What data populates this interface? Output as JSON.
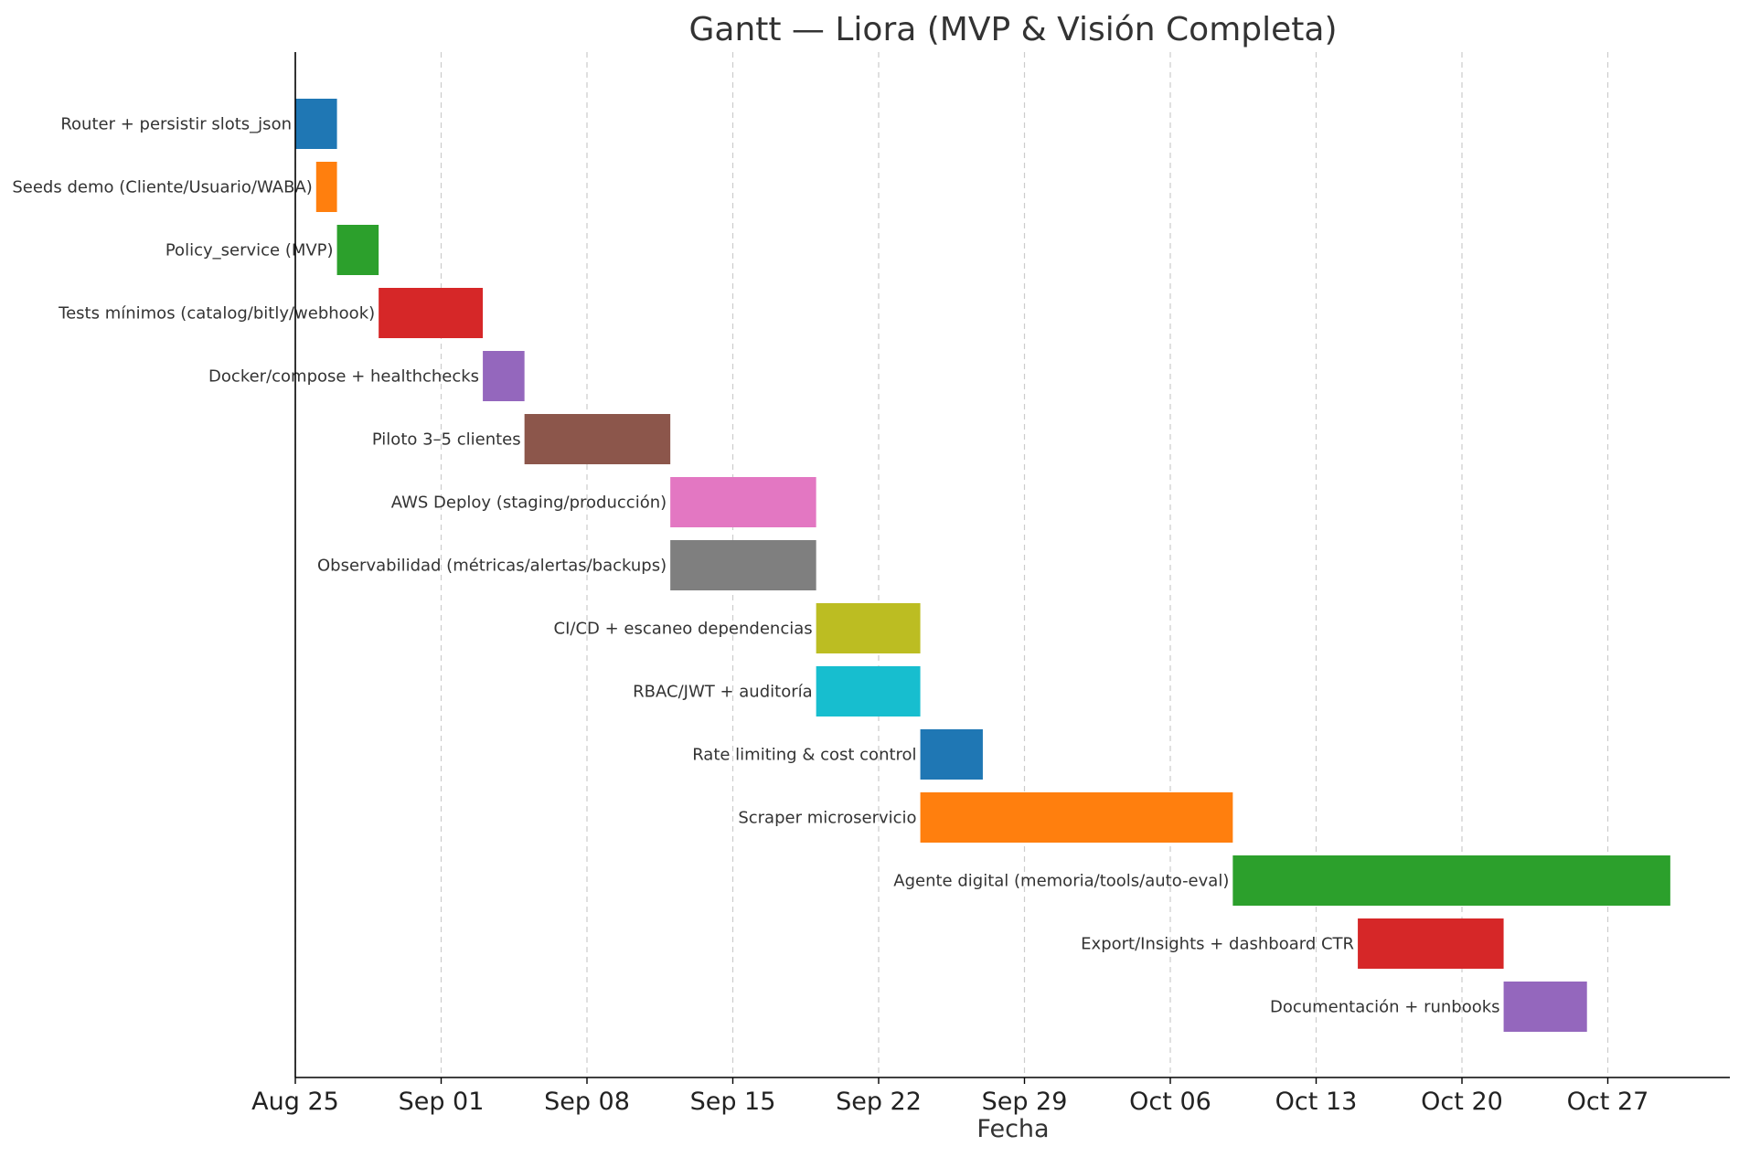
{
  "chart_data": {
    "type": "gantt",
    "title": "Gantt — Liora (MVP & Visión Completa)",
    "xlabel": "Fecha",
    "ylabel": "",
    "x_axis": {
      "type": "date",
      "range": [
        "2025-08-25",
        "2025-11-01"
      ],
      "ticks": [
        {
          "date": "2025-08-25",
          "label": "Aug 25"
        },
        {
          "date": "2025-09-01",
          "label": "Sep 01"
        },
        {
          "date": "2025-09-08",
          "label": "Sep 08"
        },
        {
          "date": "2025-09-15",
          "label": "Sep 15"
        },
        {
          "date": "2025-09-22",
          "label": "Sep 22"
        },
        {
          "date": "2025-09-29",
          "label": "Sep 29"
        },
        {
          "date": "2025-10-06",
          "label": "Oct 06"
        },
        {
          "date": "2025-10-13",
          "label": "Oct 13"
        },
        {
          "date": "2025-10-20",
          "label": "Oct 20"
        },
        {
          "date": "2025-10-27",
          "label": "Oct 27"
        }
      ]
    },
    "grid": "vertical-dashed",
    "tasks": [
      {
        "label": "Router + persistir slots_json",
        "start": "2025-08-25",
        "end": "2025-08-27",
        "color": "#1f77b4"
      },
      {
        "label": "Seeds demo (Cliente/Usuario/WABA)",
        "start": "2025-08-26",
        "end": "2025-08-27",
        "color": "#ff7f0e"
      },
      {
        "label": "Policy_service (MVP)",
        "start": "2025-08-27",
        "end": "2025-08-29",
        "color": "#2ca02c"
      },
      {
        "label": "Tests mínimos (catalog/bitly/webhook)",
        "start": "2025-08-29",
        "end": "2025-09-03",
        "color": "#d62728"
      },
      {
        "label": "Docker/compose + healthchecks",
        "start": "2025-09-03",
        "end": "2025-09-05",
        "color": "#9467bd"
      },
      {
        "label": "Piloto 3–5 clientes",
        "start": "2025-09-05",
        "end": "2025-09-12",
        "color": "#8c564b"
      },
      {
        "label": "AWS Deploy (staging/producción)",
        "start": "2025-09-12",
        "end": "2025-09-19",
        "color": "#e377c2"
      },
      {
        "label": "Observabilidad (métricas/alertas/backups)",
        "start": "2025-09-12",
        "end": "2025-09-19",
        "color": "#7f7f7f"
      },
      {
        "label": "CI/CD + escaneo dependencias",
        "start": "2025-09-19",
        "end": "2025-09-24",
        "color": "#bcbd22"
      },
      {
        "label": "RBAC/JWT + auditoría",
        "start": "2025-09-19",
        "end": "2025-09-24",
        "color": "#17becf"
      },
      {
        "label": "Rate limiting & cost control",
        "start": "2025-09-24",
        "end": "2025-09-27",
        "color": "#1f77b4"
      },
      {
        "label": "Scraper microservicio",
        "start": "2025-09-24",
        "end": "2025-10-09",
        "color": "#ff7f0e"
      },
      {
        "label": "Agente digital (memoria/tools/auto-eval)",
        "start": "2025-10-09",
        "end": "2025-10-30",
        "color": "#2ca02c"
      },
      {
        "label": "Export/Insights + dashboard CTR",
        "start": "2025-10-15",
        "end": "2025-10-22",
        "color": "#d62728"
      },
      {
        "label": "Documentación + runbooks",
        "start": "2025-10-22",
        "end": "2025-10-26",
        "color": "#9467bd"
      }
    ]
  }
}
